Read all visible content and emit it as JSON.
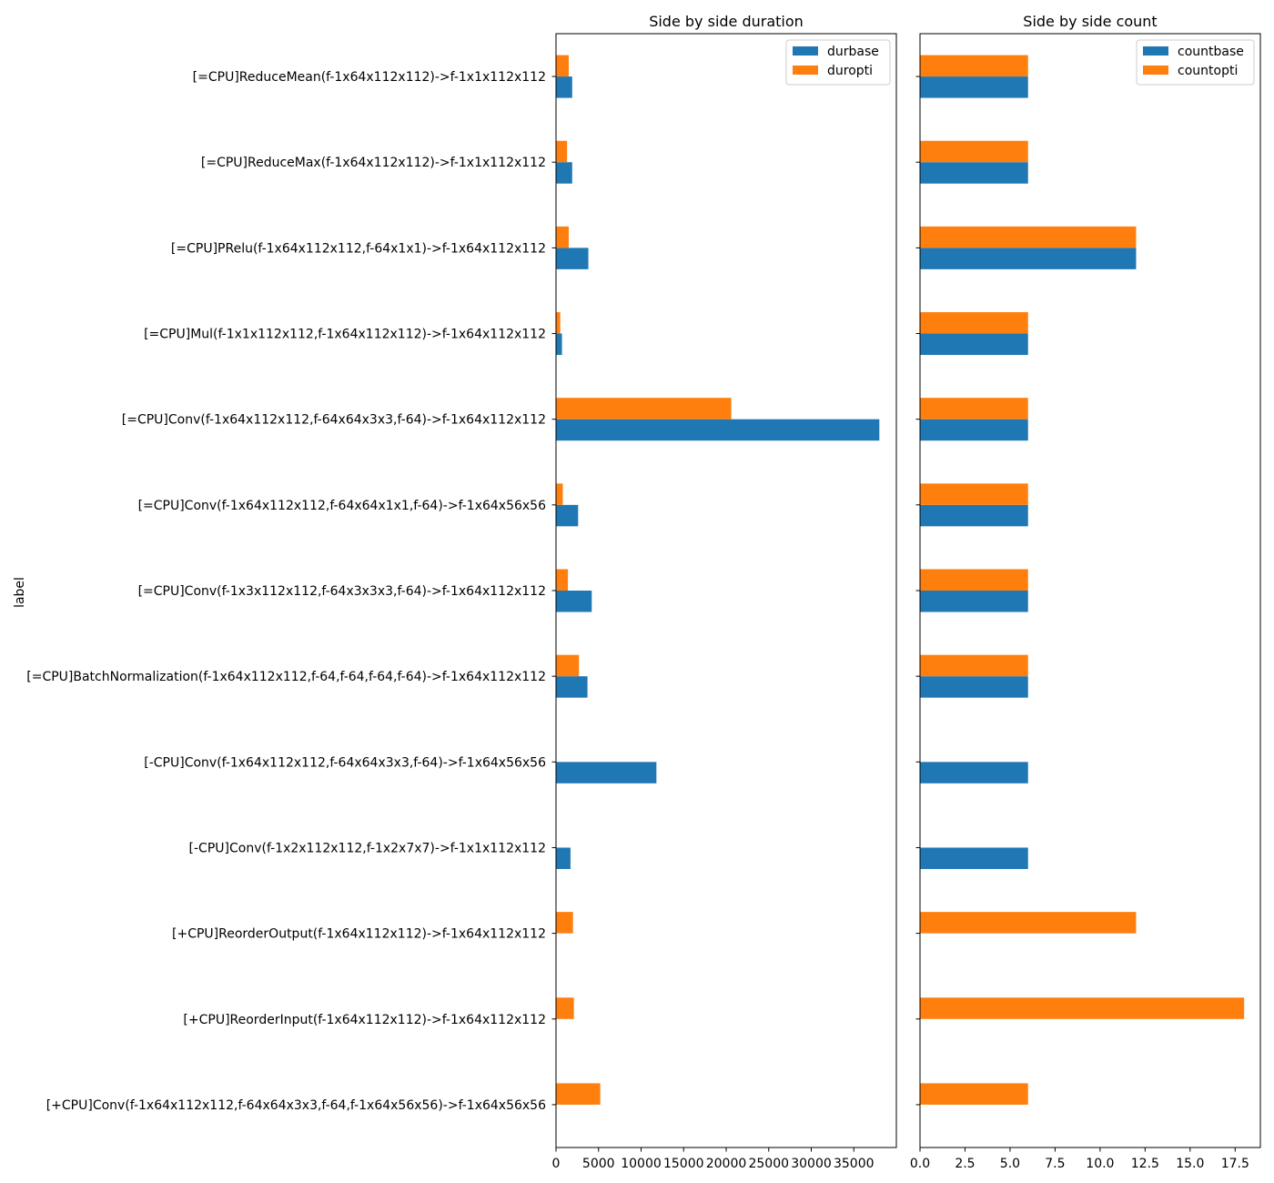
{
  "chart_data": {
    "type": "bar",
    "orientation": "horizontal",
    "ylabel": "label",
    "categories": [
      "[=CPU]ReduceMean(f-1x64x112x112)->f-1x1x112x112",
      "[=CPU]ReduceMax(f-1x64x112x112)->f-1x1x112x112",
      "[=CPU]PRelu(f-1x64x112x112,f-64x1x1)->f-1x64x112x112",
      "[=CPU]Mul(f-1x1x112x112,f-1x64x112x112)->f-1x64x112x112",
      "[=CPU]Conv(f-1x64x112x112,f-64x64x3x3,f-64)->f-1x64x112x112",
      "[=CPU]Conv(f-1x64x112x112,f-64x64x1x1,f-64)->f-1x64x56x56",
      "[=CPU]Conv(f-1x3x112x112,f-64x3x3x3,f-64)->f-1x64x112x112",
      "[=CPU]BatchNormalization(f-1x64x112x112,f-64,f-64,f-64,f-64)->f-1x64x112x112",
      "[-CPU]Conv(f-1x64x112x112,f-64x64x3x3,f-64)->f-1x64x56x56",
      "[-CPU]Conv(f-1x2x112x112,f-1x2x7x7)->f-1x1x112x112",
      "[+CPU]ReorderOutput(f-1x64x112x112)->f-1x64x112x112",
      "[+CPU]ReorderInput(f-1x64x112x112)->f-1x64x112x112",
      "[+CPU]Conv(f-1x64x112x112,f-64x64x3x3,f-64,f-1x64x56x56)->f-1x64x56x56"
    ],
    "panels": [
      {
        "title": "Side by side duration",
        "xlim": [
          0,
          40000
        ],
        "ticks": [
          0,
          5000,
          10000,
          15000,
          20000,
          25000,
          30000,
          35000
        ],
        "tick_labels": [
          "0",
          "5000",
          "10000",
          "15000",
          "20000",
          "25000",
          "30000",
          "35000"
        ],
        "legend_position": "top-right",
        "series": [
          {
            "name": "durbase",
            "color": "#1f77b4",
            "values": [
              1900,
              1900,
              3800,
              700,
              38000,
              2600,
              4200,
              3700,
              11800,
              1700,
              0,
              0,
              0
            ]
          },
          {
            "name": "duropti",
            "color": "#ff7f0e",
            "values": [
              1500,
              1300,
              1500,
              500,
              20600,
              800,
              1400,
              2700,
              0,
              0,
              2000,
              2100,
              5200
            ]
          }
        ]
      },
      {
        "title": "Side by side count",
        "xlim": [
          0,
          18.9
        ],
        "ticks": [
          0,
          2.5,
          5,
          7.5,
          10,
          12.5,
          15,
          17.5
        ],
        "tick_labels": [
          "0.0",
          "2.5",
          "5.0",
          "7.5",
          "10.0",
          "12.5",
          "15.0",
          "17.5"
        ],
        "legend_position": "top-right",
        "series": [
          {
            "name": "countbase",
            "color": "#1f77b4",
            "values": [
              6,
              6,
              12,
              6,
              6,
              6,
              6,
              6,
              6,
              6,
              0,
              0,
              0
            ]
          },
          {
            "name": "countopti",
            "color": "#ff7f0e",
            "values": [
              6,
              6,
              12,
              6,
              6,
              6,
              6,
              6,
              0,
              0,
              12,
              18,
              6
            ]
          }
        ]
      }
    ]
  }
}
